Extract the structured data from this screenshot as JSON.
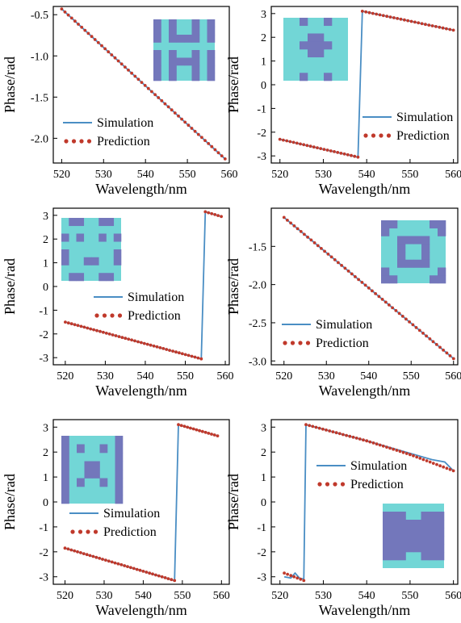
{
  "colors": {
    "simulation": "#4a8ec4",
    "prediction": "#c0392b",
    "inset_light": "#72d6d6",
    "inset_dark": "#7377bb"
  },
  "legend": {
    "simulation": "Simulation",
    "prediction": "Prediction"
  },
  "chart_data": [
    {
      "type": "line",
      "xlabel": "Wavelength/nm",
      "ylabel": "Phase/rad",
      "xlim": [
        518,
        560
      ],
      "ylim": [
        -2.3,
        -0.4
      ],
      "xticks": [
        520,
        530,
        540,
        550,
        560
      ],
      "yticks": [
        -0.5,
        -1.0,
        -1.5,
        -2.0
      ],
      "ytick_labels": [
        "-0.5",
        "-1.0",
        "-1.5",
        "-2.0"
      ],
      "legend_position": "lower-left",
      "inset_pattern": "a",
      "inset_position": "top-right",
      "series": [
        {
          "name": "Simulation",
          "style": "line",
          "x": [
            520,
            559
          ],
          "y": [
            -0.43,
            -2.25
          ]
        },
        {
          "name": "Prediction",
          "style": "dotted",
          "x": [
            520,
            559
          ],
          "y": [
            -0.43,
            -2.25
          ]
        }
      ]
    },
    {
      "type": "line",
      "xlabel": "Wavelength/nm",
      "ylabel": "Phase/rad",
      "xlim": [
        518,
        561
      ],
      "ylim": [
        -3.3,
        3.3
      ],
      "xticks": [
        520,
        530,
        540,
        550,
        560
      ],
      "yticks": [
        3,
        2,
        1,
        0,
        -1,
        -2,
        -3
      ],
      "ytick_labels": [
        "3",
        "2",
        "1",
        "0",
        "-1",
        "-2",
        "-3"
      ],
      "legend_position": "center-right",
      "inset_pattern": "b",
      "inset_position": "top-left",
      "series": [
        {
          "name": "Simulation",
          "style": "line",
          "x": [
            520,
            538,
            539,
            560
          ],
          "y": [
            -2.3,
            -3.05,
            3.1,
            2.3
          ]
        },
        {
          "name": "Prediction",
          "style": "dotted",
          "x": [
            520,
            538,
            null,
            539,
            560
          ],
          "y": [
            -2.3,
            -3.05,
            null,
            3.1,
            2.3
          ]
        }
      ]
    },
    {
      "type": "line",
      "xlabel": "Wavelength/nm",
      "ylabel": "Phase/rad",
      "xlim": [
        517,
        561
      ],
      "ylim": [
        -3.3,
        3.3
      ],
      "xticks": [
        520,
        530,
        540,
        550,
        560
      ],
      "yticks": [
        3,
        2,
        1,
        0,
        -1,
        -2,
        -3
      ],
      "ytick_labels": [
        "3",
        "2",
        "1",
        "0",
        "-1",
        "-2",
        "-3"
      ],
      "legend_position": "center-right",
      "inset_pattern": "c",
      "inset_position": "top-left",
      "series": [
        {
          "name": "Simulation",
          "style": "line",
          "x": [
            520,
            554,
            555,
            559
          ],
          "y": [
            -1.5,
            -3.05,
            3.15,
            2.95
          ]
        },
        {
          "name": "Prediction",
          "style": "dotted",
          "x": [
            520,
            554,
            null,
            555,
            559
          ],
          "y": [
            -1.5,
            -3.05,
            null,
            3.15,
            2.95
          ]
        }
      ]
    },
    {
      "type": "line",
      "xlabel": "Wavelength/nm",
      "ylabel": "Phase/rad",
      "xlim": [
        517,
        561
      ],
      "ylim": [
        -3.05,
        -1.0
      ],
      "xticks": [
        520,
        530,
        540,
        550,
        560
      ],
      "yticks": [
        -1.5,
        -2.0,
        -2.5,
        -3.0
      ],
      "ytick_labels": [
        "-1.5",
        "-2.0",
        "-2.5",
        "-3.0"
      ],
      "legend_position": "lower-left",
      "inset_pattern": "d",
      "inset_position": "top-right",
      "series": [
        {
          "name": "Simulation",
          "style": "line",
          "x": [
            520,
            560
          ],
          "y": [
            -1.12,
            -2.97
          ]
        },
        {
          "name": "Prediction",
          "style": "dotted",
          "x": [
            520,
            560
          ],
          "y": [
            -1.12,
            -2.97
          ]
        }
      ]
    },
    {
      "type": "line",
      "xlabel": "Wavelength/nm",
      "ylabel": "Phase/rad",
      "xlim": [
        517,
        562
      ],
      "ylim": [
        -3.3,
        3.3
      ],
      "xticks": [
        520,
        530,
        540,
        550,
        560
      ],
      "yticks": [
        3,
        2,
        1,
        0,
        -1,
        -2,
        -3
      ],
      "ytick_labels": [
        "3",
        "2",
        "1",
        "0",
        "-1",
        "-2",
        "-3"
      ],
      "legend_position": "center",
      "inset_pattern": "e",
      "inset_position": "top-left",
      "series": [
        {
          "name": "Simulation",
          "style": "line",
          "x": [
            520,
            548,
            549,
            559
          ],
          "y": [
            -1.85,
            -3.15,
            3.1,
            2.65
          ]
        },
        {
          "name": "Prediction",
          "style": "dotted",
          "x": [
            520,
            548,
            null,
            549,
            559
          ],
          "y": [
            -1.85,
            -3.15,
            null,
            3.1,
            2.65
          ]
        }
      ]
    },
    {
      "type": "line",
      "xlabel": "Wavelength/nm",
      "ylabel": "Phase/rad",
      "xlim": [
        518,
        561
      ],
      "ylim": [
        -3.3,
        3.3
      ],
      "xticks": [
        520,
        530,
        540,
        550,
        560
      ],
      "yticks": [
        3,
        2,
        1,
        0,
        -1,
        -2,
        -3
      ],
      "ytick_labels": [
        "3",
        "2",
        "1",
        "0",
        "-1",
        "-2",
        "-3"
      ],
      "legend_position": "upper-center",
      "inset_pattern": "f",
      "inset_position": "bottom-right",
      "series": [
        {
          "name": "Simulation",
          "style": "line",
          "x": [
            521,
            522.5,
            523.5,
            524.5,
            525.5,
            526,
            540,
            550,
            555,
            558,
            560
          ],
          "y": [
            -3.0,
            -3.05,
            -2.85,
            -3.05,
            -3.1,
            3.1,
            2.45,
            1.95,
            1.7,
            1.6,
            1.25
          ]
        },
        {
          "name": "Prediction",
          "style": "dotted",
          "x": [
            521,
            525.5,
            null,
            526,
            540,
            550,
            560
          ],
          "y": [
            -2.85,
            -3.15,
            null,
            3.1,
            2.45,
            1.9,
            1.25
          ]
        }
      ]
    }
  ]
}
